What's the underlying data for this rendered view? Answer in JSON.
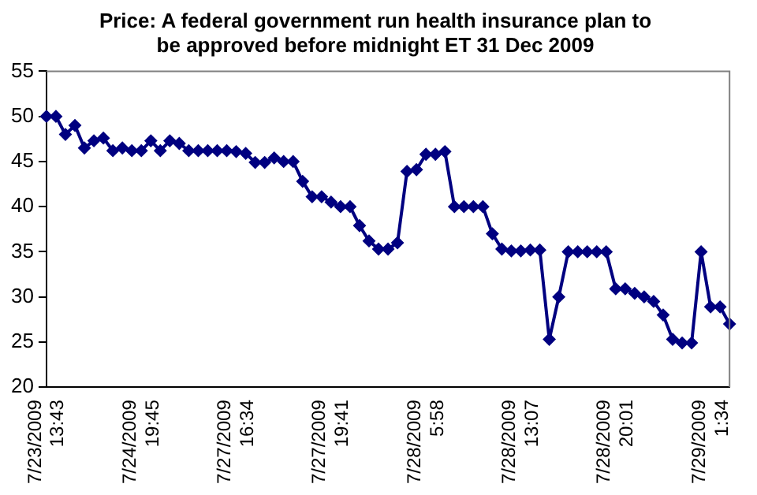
{
  "chart_data": {
    "type": "line",
    "title": "Price: A federal government run health insurance plan to be approved before midnight ET 31 Dec 2009",
    "categories": [
      "7/23/2009 13:43",
      null,
      null,
      null,
      null,
      null,
      null,
      null,
      null,
      null,
      "7/24/2009 19:45",
      null,
      null,
      null,
      null,
      null,
      null,
      null,
      null,
      null,
      "7/27/2009 16:34",
      null,
      null,
      null,
      null,
      null,
      null,
      null,
      null,
      null,
      "7/27/2009 19:41",
      null,
      null,
      null,
      null,
      null,
      null,
      null,
      null,
      null,
      "7/28/2009 5:58",
      null,
      null,
      null,
      null,
      null,
      null,
      null,
      null,
      null,
      "7/28/2009 13:07",
      null,
      null,
      null,
      null,
      null,
      null,
      null,
      null,
      null,
      "7/28/2009 20:01",
      null,
      null,
      null,
      null,
      null,
      null,
      null,
      null,
      null,
      "7/29/2009 1:34",
      null,
      null
    ],
    "series": [
      {
        "color": "#000080",
        "values": [
          50,
          50,
          48,
          49,
          46.5,
          47.3,
          47.6,
          46.2,
          46.5,
          46.2,
          46.2,
          47.3,
          46.2,
          47.3,
          47,
          46.2,
          46.2,
          46.2,
          46.2,
          46.2,
          46.1,
          45.9,
          44.9,
          44.9,
          45.4,
          45,
          45,
          42.8,
          41.1,
          41.1,
          40.5,
          40,
          40,
          37.9,
          36.2,
          35.3,
          35.3,
          36,
          43.9,
          44.1,
          45.8,
          45.8,
          46.1,
          40,
          40,
          40,
          40,
          37,
          35.3,
          35.1,
          35.1,
          35.2,
          35.2,
          25.3,
          30,
          35,
          35,
          35,
          35,
          35,
          30.9,
          30.9,
          30.4,
          30,
          29.5,
          28,
          25.3,
          24.9,
          24.9,
          35,
          28.9,
          28.9,
          27
        ]
      }
    ],
    "ylim": [
      20,
      55
    ],
    "yticks": [
      20,
      25,
      30,
      35,
      40,
      45,
      50,
      55
    ],
    "grid": false,
    "legend": false,
    "marker": "diamond",
    "line_style": "solid"
  }
}
